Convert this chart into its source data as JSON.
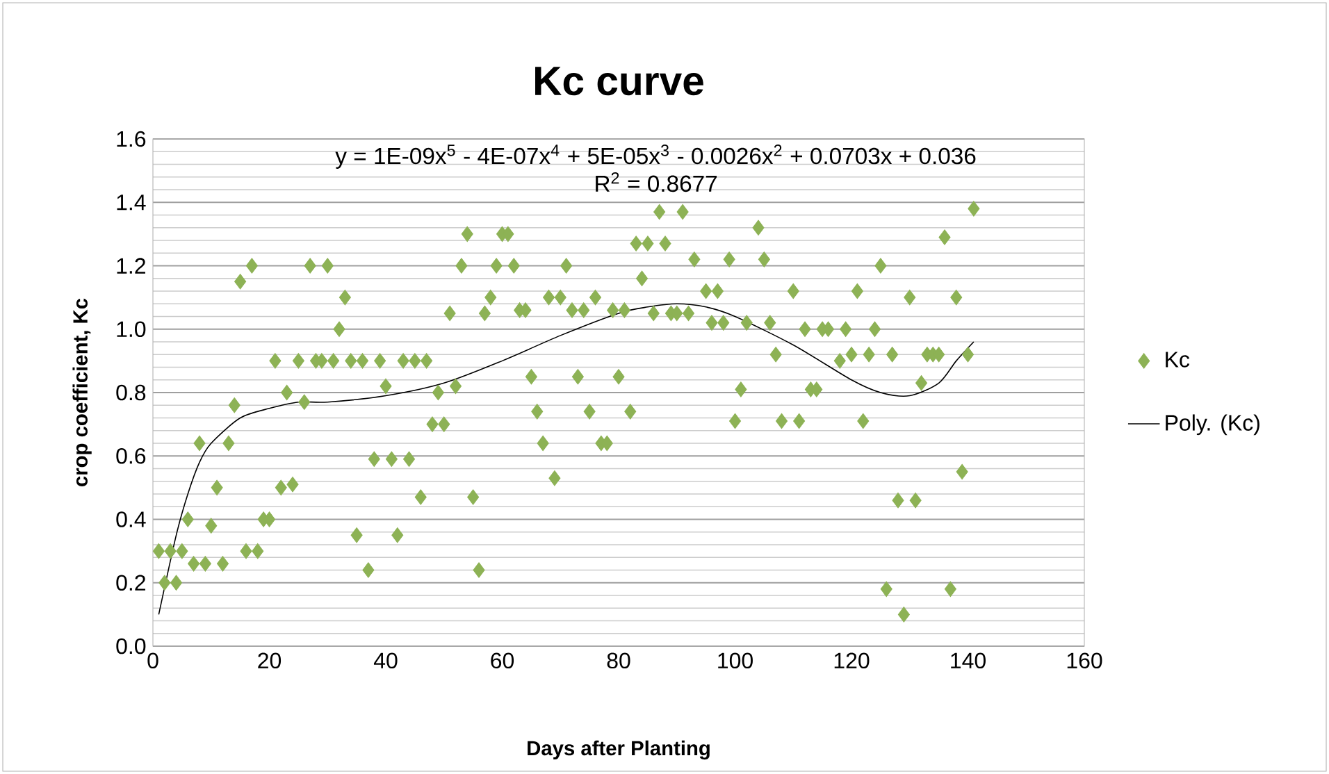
{
  "chart_data": {
    "type": "scatter",
    "title": "Kc curve",
    "xlabel": "Days after Planting",
    "ylabel": "crop coefficient, Kc",
    "xlim": [
      0,
      160
    ],
    "xticks": [
      0,
      20,
      40,
      60,
      80,
      100,
      120,
      140,
      160
    ],
    "ylim": [
      0,
      1.6
    ],
    "yticks": [
      {
        "value": 0,
        "label": "0.0"
      },
      0.2,
      0.4,
      0.6,
      0.8,
      {
        "value": 1,
        "label": "1.0"
      },
      1.2,
      1.4,
      1.6
    ],
    "grid": "y",
    "legend": "right",
    "marker": "diamond",
    "annotations": [
      "y = 1E-09x$^{5}$ - 4E-07x$^{4}$ + 5E-05x$^{3}$ - 0.0026x$^{2}$ + 0.0703x + 0.036",
      "R$^{2}$ = 0.8677"
    ],
    "series": [
      {
        "name": "Kc",
        "color": "#8db255",
        "x": [
          1,
          2,
          3,
          4,
          5,
          6,
          7,
          8,
          9,
          10,
          11,
          12,
          13,
          14,
          15,
          16,
          17,
          18,
          19,
          20,
          21,
          22,
          23,
          24,
          25,
          26,
          27,
          28,
          29,
          30,
          31,
          32,
          33,
          34,
          35,
          36,
          37,
          38,
          39,
          40,
          41,
          42,
          43,
          44,
          45,
          46,
          47,
          48,
          49,
          50,
          51,
          52,
          53,
          54,
          55,
          56,
          57,
          58,
          59,
          60,
          61,
          62,
          63,
          64,
          65,
          66,
          67,
          68,
          69,
          70,
          71,
          72,
          73,
          74,
          75,
          76,
          77,
          78,
          79,
          80,
          81,
          82,
          83,
          84,
          85,
          86,
          87,
          88,
          89,
          90,
          91,
          92,
          93,
          95,
          96,
          97,
          98,
          99,
          100,
          101,
          102,
          104,
          105,
          106,
          107,
          108,
          110,
          111,
          112,
          113,
          114,
          115,
          116,
          118,
          119,
          120,
          121,
          122,
          123,
          124,
          125,
          126,
          127,
          128,
          129,
          130,
          131,
          132,
          133,
          134,
          135,
          136,
          137,
          138,
          139,
          140,
          141
        ],
        "values": [
          0.3,
          0.2,
          0.3,
          0.2,
          0.3,
          0.4,
          0.26,
          0.64,
          0.26,
          0.38,
          0.5,
          0.26,
          0.64,
          0.76,
          1.15,
          0.3,
          1.2,
          0.3,
          0.4,
          0.4,
          0.9,
          0.5,
          0.8,
          0.51,
          0.9,
          0.77,
          1.2,
          0.9,
          0.9,
          1.2,
          0.9,
          1.0,
          1.1,
          0.9,
          0.35,
          0.9,
          0.24,
          0.59,
          0.9,
          0.82,
          0.59,
          0.35,
          0.9,
          0.59,
          0.9,
          0.47,
          0.9,
          0.7,
          0.8,
          0.7,
          1.05,
          0.82,
          1.2,
          1.3,
          0.47,
          0.24,
          1.05,
          1.1,
          1.2,
          1.3,
          1.3,
          1.2,
          1.06,
          1.06,
          0.85,
          0.74,
          0.64,
          1.1,
          0.53,
          1.1,
          1.2,
          1.06,
          0.85,
          1.06,
          0.74,
          1.1,
          0.64,
          0.64,
          1.06,
          0.85,
          1.06,
          0.74,
          1.27,
          1.16,
          1.27,
          1.05,
          1.37,
          1.27,
          1.05,
          1.05,
          1.37,
          1.05,
          1.22,
          1.12,
          1.02,
          1.12,
          1.02,
          1.22,
          0.71,
          0.81,
          1.02,
          1.32,
          1.22,
          1.02,
          0.92,
          0.71,
          1.12,
          0.71,
          1.0,
          0.81,
          0.81,
          1.0,
          1.0,
          0.9,
          1.0,
          0.92,
          1.12,
          0.71,
          0.92,
          1.0,
          1.2,
          0.18,
          0.92,
          0.46,
          0.1,
          1.1,
          0.46,
          0.83,
          0.92,
          0.92,
          0.92,
          1.29,
          0.18,
          1.1,
          0.55,
          0.92,
          1.38
        ]
      },
      {
        "name": "Poly. (Kc)",
        "type": "line",
        "marker": "none",
        "color": "#000000",
        "x": [
          1,
          4,
          6,
          8,
          10,
          15,
          20,
          25,
          30,
          40,
          50,
          60,
          70,
          80,
          85,
          90,
          95,
          100,
          110,
          120,
          125,
          130,
          135,
          138,
          141
        ],
        "values": [
          0.1,
          0.35,
          0.48,
          0.58,
          0.64,
          0.72,
          0.75,
          0.77,
          0.77,
          0.79,
          0.83,
          0.9,
          0.98,
          1.05,
          1.07,
          1.08,
          1.07,
          1.04,
          0.95,
          0.84,
          0.8,
          0.79,
          0.83,
          0.9,
          0.96
        ]
      }
    ]
  }
}
